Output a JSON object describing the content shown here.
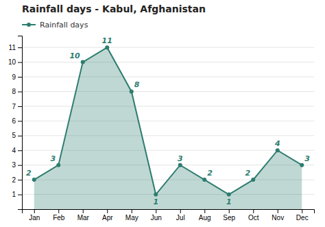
{
  "chart_data": {
    "type": "area",
    "title": "Rainfall days - Kabul, Afghanistan",
    "categories": [
      "Jan",
      "Feb",
      "Mar",
      "Apr",
      "May",
      "Jun",
      "Jul",
      "Aug",
      "Sep",
      "Oct",
      "Nov",
      "Dec"
    ],
    "series": [
      {
        "name": "Rainfall days",
        "color": "#2d7d6f",
        "marker": "circle",
        "values": [
          2,
          3,
          10,
          11,
          8,
          1,
          3,
          2,
          1,
          2,
          4,
          3
        ]
      }
    ],
    "ylim": [
      0,
      11.8
    ],
    "yticks": [
      1,
      2,
      3,
      4,
      5,
      6,
      7,
      8,
      9,
      10,
      11
    ],
    "grid": true,
    "legend": "upper left",
    "data_labels": true
  }
}
